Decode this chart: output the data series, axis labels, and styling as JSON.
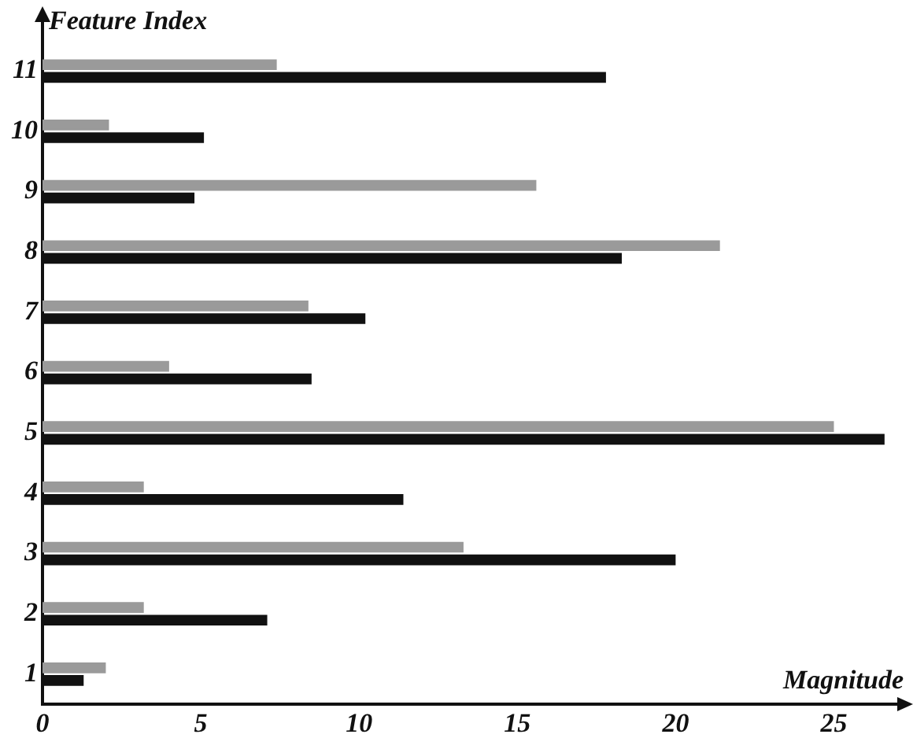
{
  "chart_data": {
    "type": "bar",
    "orientation": "horizontal",
    "xlabel": "Magnitude",
    "ylabel": "Feature Index",
    "categories": [
      "11",
      "10",
      "9",
      "8",
      "7",
      "6",
      "5",
      "4",
      "3",
      "2",
      "1"
    ],
    "series": [
      {
        "color": "#9a9a9a",
        "values": [
          7.4,
          2.1,
          15.6,
          21.4,
          8.4,
          4.0,
          25.0,
          3.2,
          13.3,
          3.2,
          2.0
        ]
      },
      {
        "color": "#111111",
        "values": [
          17.8,
          5.1,
          4.8,
          18.3,
          10.2,
          8.5,
          26.6,
          11.4,
          20.0,
          7.1,
          1.3
        ]
      }
    ],
    "xlim": [
      0,
      27.3
    ],
    "xticks": [
      0,
      5,
      10,
      15,
      20,
      25
    ],
    "grid": false,
    "legend": false
  }
}
